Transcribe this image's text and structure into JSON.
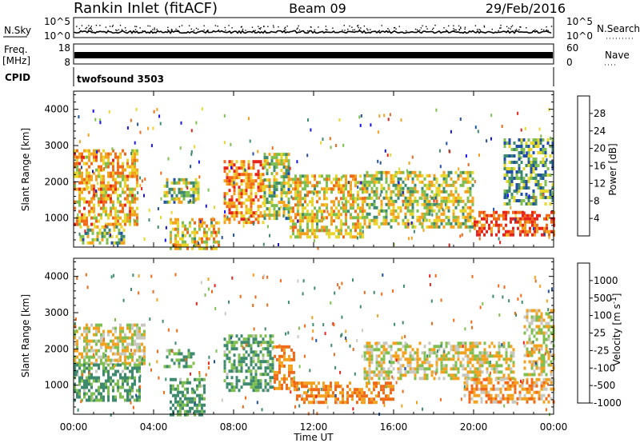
{
  "header": {
    "station": "Rankin Inlet (fitACF)",
    "beam": "Beam 09",
    "date": "29/Feb/2016"
  },
  "strips": {
    "nsky_label": "N.Sky",
    "nsky_ticks": [
      "10^5",
      "10^0"
    ],
    "nsearch_label": "N.Search",
    "nsearch_ticks": [
      "10^5",
      "10^0"
    ],
    "freq_label_1": "Freq.",
    "freq_label_2": "[MHz]",
    "freq_ticks": [
      "18",
      "8"
    ],
    "nave_label": "Nave",
    "nave_ticks": [
      "60",
      "0"
    ],
    "cpid_label": "CPID",
    "cpid_value": "twofsound 3503"
  },
  "colors": {
    "power_scale": [
      "#1414ee",
      "#1f4fa6",
      "#3e8a6f",
      "#7fbf4f",
      "#e8d62a",
      "#f2a21e",
      "#f06a18",
      "#e6241b"
    ],
    "velocity_scale": [
      "#e6241b",
      "#f06a18",
      "#f2a21e",
      "#c8c8c0",
      "#c8c8c0",
      "#7fbf4f",
      "#3e8a6f",
      "#1f4fa6"
    ]
  },
  "chart_data": [
    {
      "type": "heatmap",
      "title": "",
      "xlabel": "Time UT",
      "ylabel": "Slant Range [km]",
      "x_ticks": [
        "00:00",
        "04:00",
        "08:00",
        "12:00",
        "16:00",
        "20:00",
        "00:00"
      ],
      "xlim_hours": [
        0,
        24
      ],
      "y_ticks": [
        1000,
        2000,
        3000,
        4000
      ],
      "ylim": [
        200,
        4500
      ],
      "colorbar_label": "Power [dB]",
      "colorbar_ticks": [
        "4",
        "8",
        "12",
        "16",
        "20",
        "24",
        "28"
      ],
      "colorbar_range": [
        0,
        30
      ],
      "regions": [
        {
          "t0": 0.0,
          "t1": 3.2,
          "r0": 800,
          "r1": 2900,
          "level": 20
        },
        {
          "t0": 0.3,
          "t1": 2.5,
          "r0": 300,
          "r1": 800,
          "level": 14
        },
        {
          "t0": 4.5,
          "t1": 6.2,
          "r0": 1400,
          "r1": 2100,
          "level": 14
        },
        {
          "t0": 4.8,
          "t1": 7.3,
          "r0": 200,
          "r1": 1000,
          "level": 18
        },
        {
          "t0": 7.5,
          "t1": 9.5,
          "r0": 900,
          "r1": 2600,
          "level": 22
        },
        {
          "t0": 9.5,
          "t1": 10.8,
          "r0": 1000,
          "r1": 2800,
          "level": 14
        },
        {
          "t0": 10.8,
          "t1": 14.5,
          "r0": 500,
          "r1": 2200,
          "level": 18
        },
        {
          "t0": 14.5,
          "t1": 20.0,
          "r0": 800,
          "r1": 2300,
          "level": 16
        },
        {
          "t0": 20.0,
          "t1": 24.0,
          "r0": 500,
          "r1": 1200,
          "level": 27
        },
        {
          "t0": 21.5,
          "t1": 24.0,
          "r0": 1400,
          "r1": 3200,
          "level": 11
        }
      ]
    },
    {
      "type": "heatmap",
      "title": "",
      "xlabel": "Time UT",
      "ylabel": "Slant Range [km]",
      "x_ticks": [
        "00:00",
        "04:00",
        "08:00",
        "12:00",
        "16:00",
        "20:00",
        "00:00"
      ],
      "xlim_hours": [
        0,
        24
      ],
      "y_ticks": [
        1000,
        2000,
        3000,
        4000
      ],
      "ylim": [
        200,
        4500
      ],
      "colorbar_label": "Velocity [m s^-1]",
      "colorbar_ticks": [
        "1000",
        "500",
        "100",
        "25",
        "-25",
        "-100",
        "-500",
        "-1000"
      ],
      "regions": [
        {
          "t0": 0.0,
          "t1": 3.5,
          "r0": 1600,
          "r1": 2700,
          "vel": 0
        },
        {
          "t0": 0.0,
          "t1": 3.3,
          "r0": 600,
          "r1": 1600,
          "vel": 300
        },
        {
          "t0": 4.8,
          "t1": 6.5,
          "r0": 200,
          "r1": 1200,
          "vel": 300
        },
        {
          "t0": 4.5,
          "t1": 6.0,
          "r0": 1500,
          "r1": 2000,
          "vel": 300
        },
        {
          "t0": 7.5,
          "t1": 10.0,
          "r0": 900,
          "r1": 2400,
          "vel": 300
        },
        {
          "t0": 10.0,
          "t1": 11.0,
          "r0": 900,
          "r1": 2100,
          "vel": -300
        },
        {
          "t0": 11.0,
          "t1": 16.0,
          "r0": 500,
          "r1": 1100,
          "vel": -300
        },
        {
          "t0": 14.5,
          "t1": 22.0,
          "r0": 1200,
          "r1": 2200,
          "vel": 0
        },
        {
          "t0": 19.5,
          "t1": 24.0,
          "r0": 500,
          "r1": 1200,
          "vel": -200
        },
        {
          "t0": 22.5,
          "t1": 24.0,
          "r0": 1300,
          "r1": 3100,
          "vel": 0
        }
      ]
    }
  ]
}
